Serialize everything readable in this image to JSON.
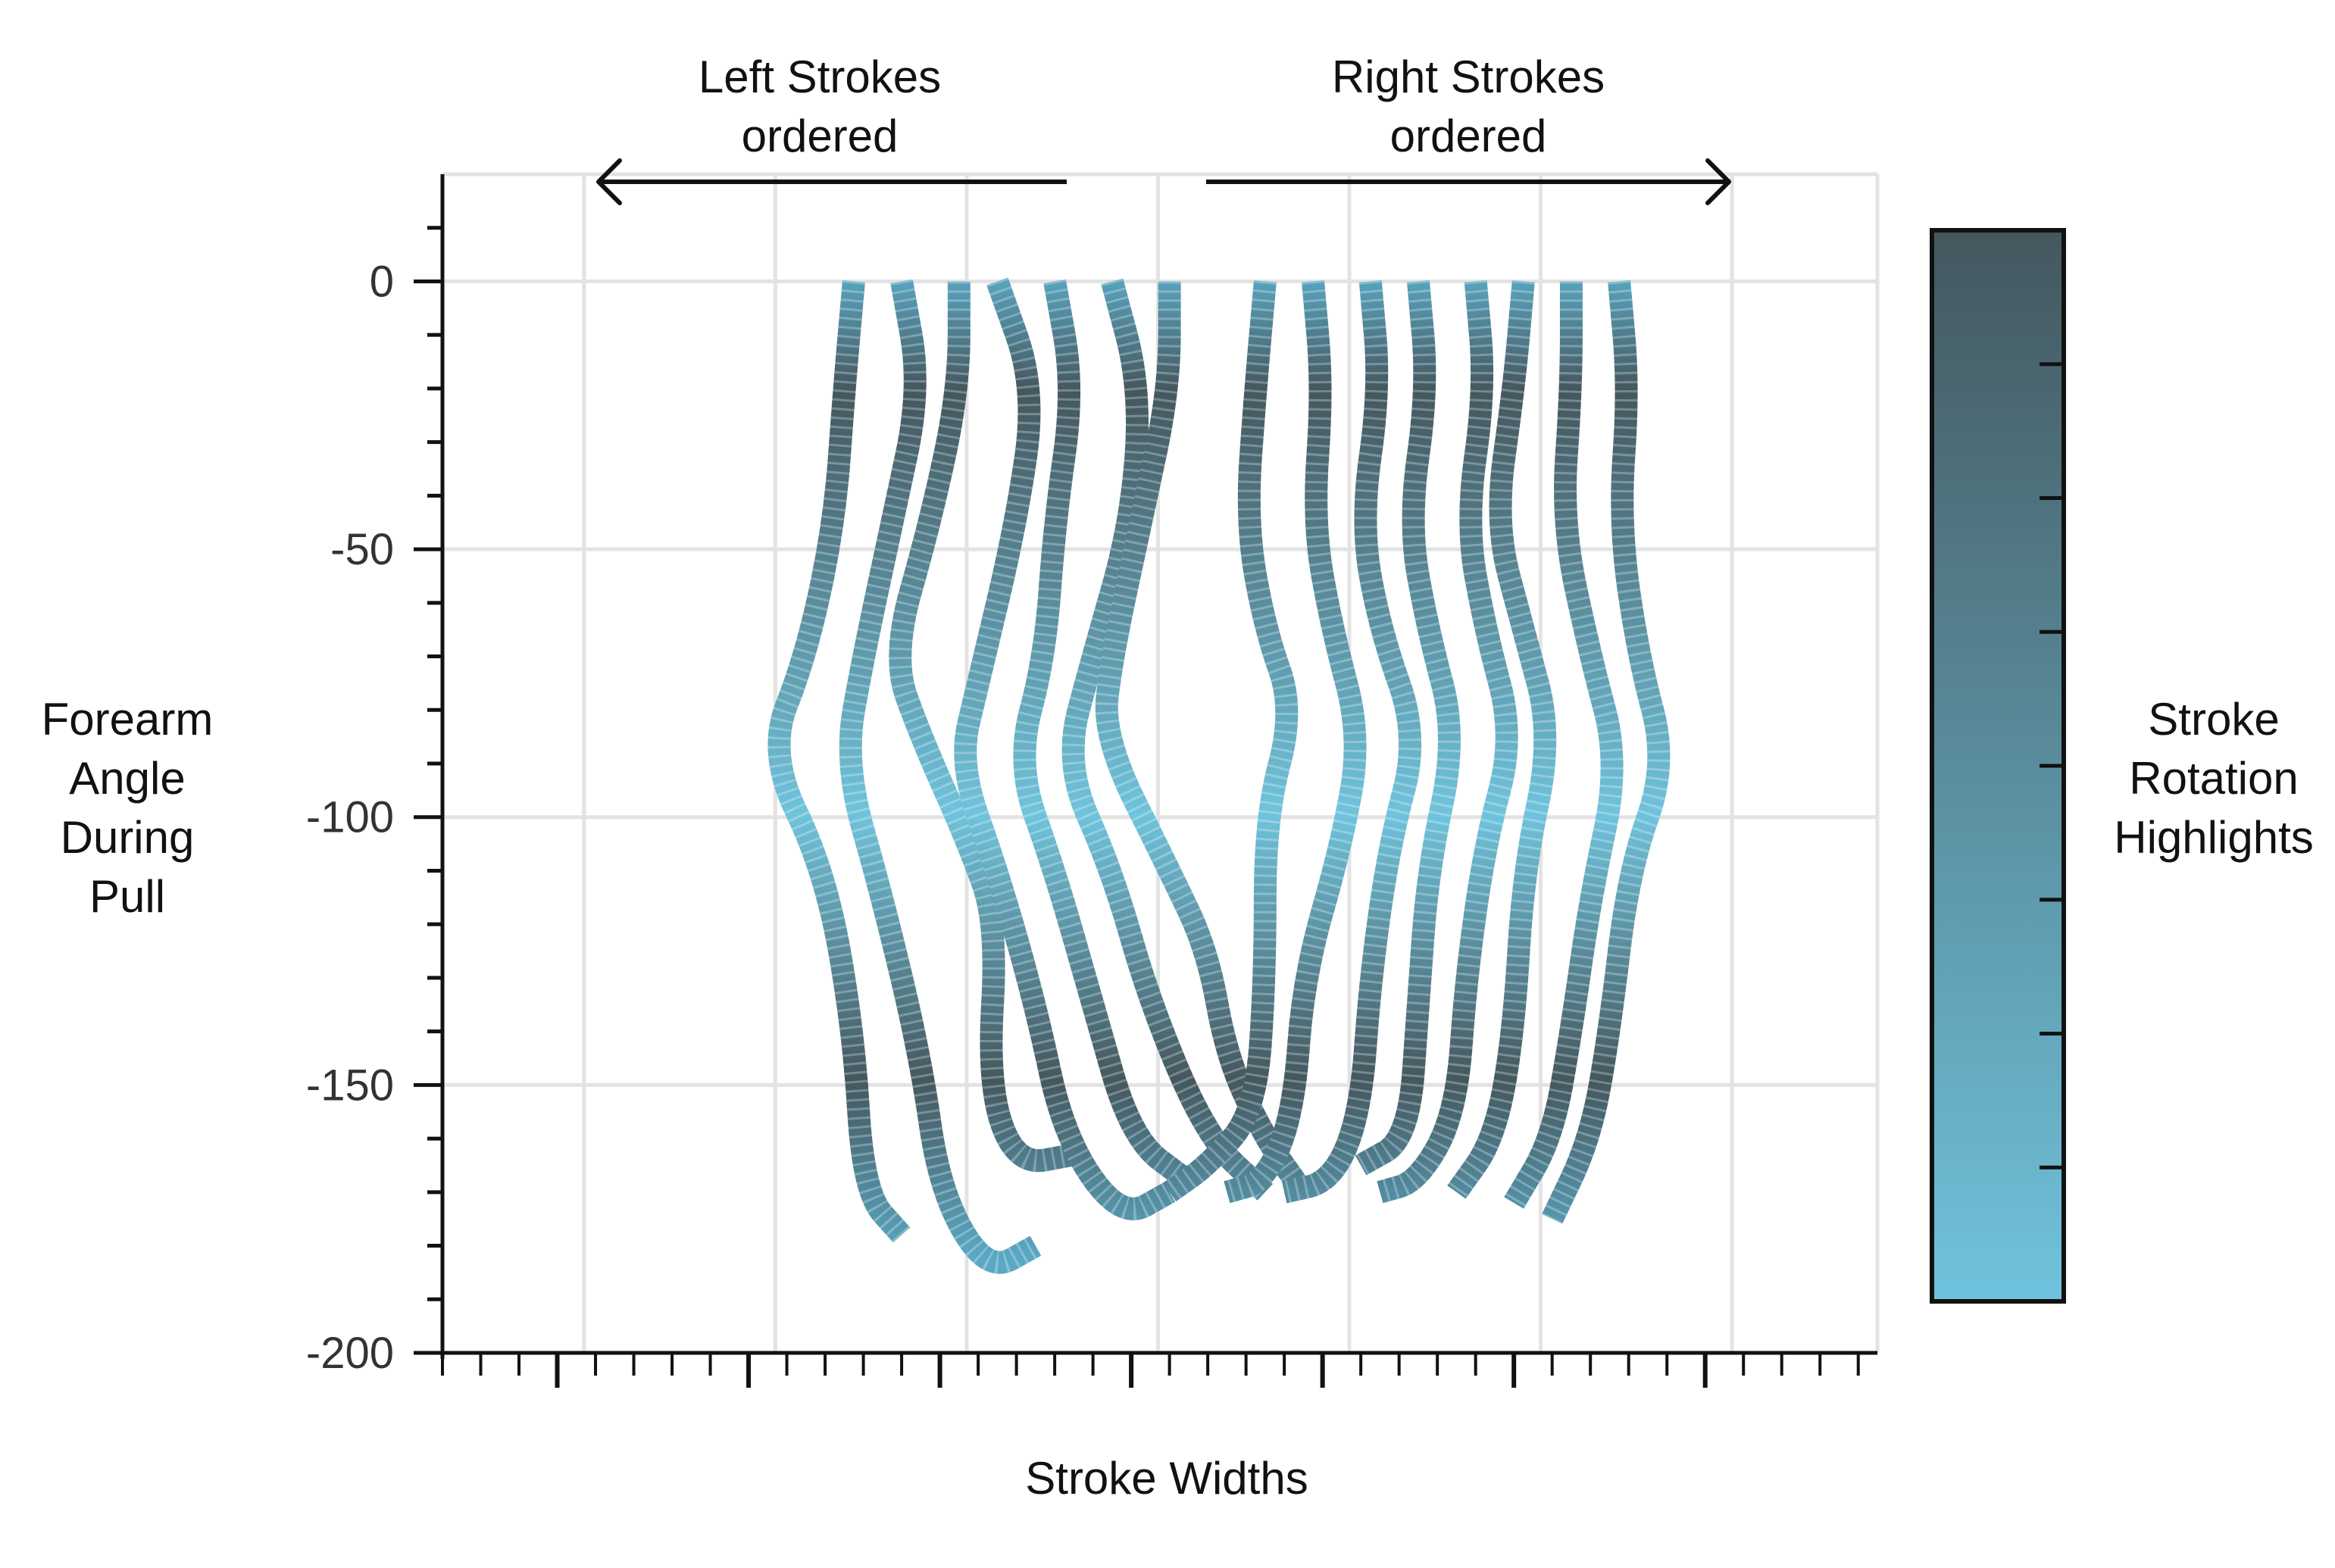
{
  "chart_data": {
    "type": "line",
    "title": "",
    "xlabel": "Stroke Widths",
    "ylabel": [
      "Forearm",
      "Angle",
      "During",
      "Pull"
    ],
    "ylim": [
      -200,
      20
    ],
    "yticks": [
      0,
      -50,
      -100,
      -150,
      -200
    ],
    "grid": true,
    "colorbar": {
      "label": [
        "Stroke",
        "Rotation",
        "Highlights"
      ],
      "colors": [
        "#44575e",
        "#6fc3dc"
      ]
    },
    "annotations": {
      "left": [
        "Left Strokes",
        "ordered"
      ],
      "right": [
        "Right Strokes",
        "ordered"
      ]
    },
    "series": [
      {
        "group": "left",
        "x": [
          21.5,
          21,
          20.5,
          19,
          17,
          20,
          21.5,
          22,
          24
        ],
        "y": [
          0,
          -20,
          -45,
          -70,
          -88,
          -110,
          -140,
          -170,
          -178
        ]
      },
      {
        "group": "left",
        "x": [
          24,
          25,
          23.5,
          22,
          21,
          23,
          25,
          26,
          28.5,
          31
        ],
        "y": [
          0,
          -20,
          -45,
          -70,
          -90,
          -115,
          -145,
          -170,
          -185,
          -180
        ]
      },
      {
        "group": "left",
        "x": [
          27,
          27,
          25.5,
          23.5,
          25,
          27.5,
          29,
          28.5,
          30,
          33
        ],
        "y": [
          0,
          -20,
          -45,
          -70,
          -85,
          -105,
          -120,
          -150,
          -165,
          -163
        ]
      },
      {
        "group": "left",
        "x": [
          29,
          31,
          30,
          28,
          27,
          29,
          31,
          32.5,
          35.5,
          38
        ],
        "y": [
          0,
          -20,
          -45,
          -75,
          -90,
          -110,
          -135,
          -160,
          -175,
          -170
        ]
      },
      {
        "group": "left",
        "x": [
          32,
          33,
          32,
          31.5,
          30,
          32,
          34,
          36,
          39
        ],
        "y": [
          0,
          -20,
          -45,
          -70,
          -90,
          -110,
          -135,
          -160,
          -168
        ]
      },
      {
        "group": "left",
        "x": [
          35,
          36.5,
          36,
          34,
          32.5,
          35,
          37,
          40,
          43
        ],
        "y": [
          0,
          -20,
          -45,
          -70,
          -90,
          -110,
          -135,
          -160,
          -170
        ]
      },
      {
        "group": "left",
        "x": [
          38,
          38,
          36.5,
          35,
          34.5,
          38,
          40,
          41,
          43,
          45
        ],
        "y": [
          0,
          -20,
          -45,
          -70,
          -85,
          -110,
          -125,
          -145,
          -160,
          -170
        ]
      },
      {
        "group": "right",
        "x": [
          43,
          42.5,
          42,
          43,
          44.5,
          43,
          43,
          42.5,
          40,
          38
        ],
        "y": [
          0,
          -20,
          -45,
          -65,
          -80,
          -100,
          -130,
          -155,
          -165,
          -170
        ]
      },
      {
        "group": "right",
        "x": [
          45.5,
          46,
          45.5,
          46.5,
          48,
          47,
          45,
          44.5,
          43,
          41
        ],
        "y": [
          0,
          -20,
          -45,
          -65,
          -85,
          -105,
          -130,
          -155,
          -168,
          -170
        ]
      },
      {
        "group": "right",
        "x": [
          48.5,
          49,
          48,
          49,
          51,
          49.5,
          48.5,
          48,
          46.5,
          44
        ],
        "y": [
          0,
          -20,
          -45,
          -65,
          -85,
          -105,
          -130,
          -155,
          -168,
          -170
        ]
      },
      {
        "group": "right",
        "x": [
          51,
          51.5,
          50.5,
          51.5,
          53,
          51.5,
          51,
          50.5,
          48
        ],
        "y": [
          0,
          -20,
          -45,
          -65,
          -85,
          -110,
          -135,
          -160,
          -165
        ]
      },
      {
        "group": "right",
        "x": [
          54,
          54.5,
          53.5,
          54.5,
          56,
          54.5,
          53.5,
          53,
          51,
          49
        ],
        "y": [
          0,
          -20,
          -45,
          -65,
          -85,
          -105,
          -130,
          -155,
          -168,
          -170
        ]
      },
      {
        "group": "right",
        "x": [
          56.5,
          56,
          55,
          56.5,
          58,
          56.5,
          56,
          55,
          53
        ],
        "y": [
          0,
          -20,
          -45,
          -65,
          -85,
          -110,
          -140,
          -160,
          -170
        ]
      },
      {
        "group": "right",
        "x": [
          59,
          59,
          58.5,
          60,
          61.5,
          60,
          59,
          58,
          56
        ],
        "y": [
          0,
          -20,
          -45,
          -70,
          -90,
          -115,
          -140,
          -160,
          -172
        ]
      },
      {
        "group": "right",
        "x": [
          61.5,
          62,
          61.5,
          62.5,
          64,
          62,
          61,
          60,
          58
        ],
        "y": [
          0,
          -20,
          -45,
          -70,
          -90,
          -110,
          -140,
          -160,
          -175
        ]
      }
    ]
  }
}
